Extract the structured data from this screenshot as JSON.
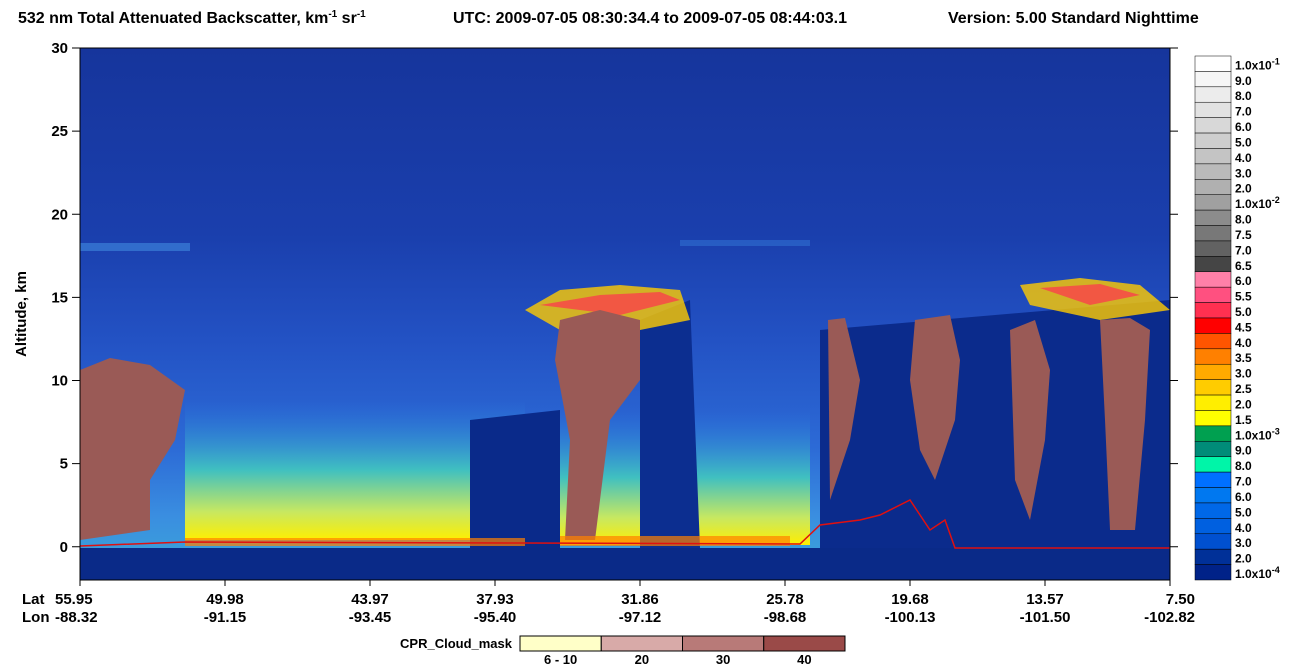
{
  "chart_data": {
    "type": "heatmap",
    "title": {
      "text": "532 nm Total Attenuated Backscatter, km",
      "sup1": "-1",
      "mid": " sr",
      "sup2": "-1"
    },
    "subtitle": "UTC:  2009-07-05 08:30:34.4  to  2009-07-05 08:44:03.1",
    "version": "Version: 5.00  Standard  Nighttime",
    "ylabel": "Altitude, km",
    "ylim": [
      -2,
      30
    ],
    "yticks": [
      0,
      5,
      10,
      15,
      20,
      25,
      30
    ],
    "row_labels": [
      "Lat",
      "Lon"
    ],
    "lat_labels": [
      "55.95",
      "49.98",
      "43.97",
      "37.93",
      "31.86",
      "25.78",
      "19.68",
      "13.57",
      "7.50"
    ],
    "lon_labels": [
      "-88.32",
      "-91.15",
      "-93.45",
      "-95.40",
      "-97.12",
      "-98.68",
      "-100.13",
      "-101.50",
      "-102.82"
    ],
    "colorbar": [
      {
        "label": "1.0x10",
        "exp": "-1",
        "color": "#ffffff"
      },
      {
        "label": "9.0",
        "color": "#f6f6f6"
      },
      {
        "label": "8.0",
        "color": "#ececec"
      },
      {
        "label": "7.0",
        "color": "#e2e2e2"
      },
      {
        "label": "6.0",
        "color": "#d8d8d8"
      },
      {
        "label": "5.0",
        "color": "#cecece"
      },
      {
        "label": "4.0",
        "color": "#c4c4c4"
      },
      {
        "label": "3.0",
        "color": "#bababa"
      },
      {
        "label": "2.0",
        "color": "#b0b0b0"
      },
      {
        "label": "1.0x10",
        "exp": "-2",
        "color": "#a0a0a0"
      },
      {
        "label": "8.0",
        "color": "#8c8c8c"
      },
      {
        "label": "7.5",
        "color": "#787878"
      },
      {
        "label": "7.0",
        "color": "#626262"
      },
      {
        "label": "6.5",
        "color": "#454545"
      },
      {
        "label": "6.0",
        "color": "#ff80a8"
      },
      {
        "label": "5.5",
        "color": "#ff5080"
      },
      {
        "label": "5.0",
        "color": "#ff3050"
      },
      {
        "label": "4.5",
        "color": "#ff0000"
      },
      {
        "label": "4.0",
        "color": "#ff5500"
      },
      {
        "label": "3.5",
        "color": "#ff8000"
      },
      {
        "label": "3.0",
        "color": "#ffaa00"
      },
      {
        "label": "2.5",
        "color": "#ffcc00"
      },
      {
        "label": "2.0",
        "color": "#ffee00"
      },
      {
        "label": "1.5",
        "color": "#ffff00"
      },
      {
        "label": "1.0x10",
        "exp": "-3",
        "color": "#00a050"
      },
      {
        "label": "9.0",
        "color": "#008c78"
      },
      {
        "label": "8.0",
        "color": "#00f5a8"
      },
      {
        "label": "7.0",
        "color": "#0070ff"
      },
      {
        "label": "6.0",
        "color": "#0078f0"
      },
      {
        "label": "5.0",
        "color": "#0068e8"
      },
      {
        "label": "4.0",
        "color": "#0060e0"
      },
      {
        "label": "3.0",
        "color": "#0050d0"
      },
      {
        "label": "2.0",
        "color": "#003098"
      },
      {
        "label": "1.0x10",
        "exp": "-4",
        "color": "#002288"
      }
    ],
    "cloud_mask": {
      "title": "CPR_Cloud_mask",
      "items": [
        {
          "label": "6 - 10",
          "color": "#ffffc8"
        },
        {
          "label": "20",
          "color": "#d8aaa8"
        },
        {
          "label": "30",
          "color": "#b87a78"
        },
        {
          "label": "40",
          "color": "#9a4a48"
        }
      ]
    }
  }
}
